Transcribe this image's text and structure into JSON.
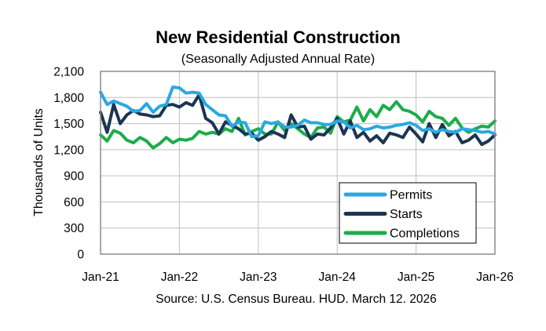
{
  "chart_data": {
    "type": "line",
    "title": "New Residential Construction",
    "subtitle": "(Seasonally Adjusted Annual Rate)",
    "ylabel": "Thousands of Units",
    "xlabel": "",
    "source": "Source:  U.S. Census Bureau. HUD. March 12. 2026",
    "ylim": [
      0,
      2100
    ],
    "yticks": [
      0,
      300,
      600,
      900,
      1200,
      1500,
      1800,
      2100
    ],
    "ytick_labels": [
      "0",
      "300",
      "600",
      "900",
      "1,200",
      "1,500",
      "1,800",
      "2,100"
    ],
    "xlim": [
      0,
      60
    ],
    "xticks": [
      0,
      12,
      24,
      36,
      48,
      60
    ],
    "xtick_labels": [
      "Jan-21",
      "Jan-22",
      "Jan-23",
      "Jan-24",
      "Jan-25",
      "Jan-26"
    ],
    "grid": true,
    "legend_position": "bottom-right",
    "series": [
      {
        "name": "Permits",
        "color": "#29a9e1",
        "x": [
          0,
          1,
          2,
          3,
          4,
          5,
          6,
          7,
          8,
          9,
          10,
          11,
          12,
          13,
          14,
          15,
          16,
          17,
          18,
          19,
          20,
          21,
          22,
          23,
          24,
          25,
          26,
          27,
          28,
          29,
          30,
          31,
          32,
          33,
          34,
          35,
          36,
          37,
          38,
          39,
          40,
          41,
          42,
          43,
          44,
          45,
          46,
          47,
          48,
          49,
          50,
          51,
          52,
          53,
          54,
          55,
          56,
          57,
          58,
          59,
          60
        ],
        "values": [
          1860,
          1720,
          1760,
          1730,
          1700,
          1640,
          1650,
          1730,
          1630,
          1700,
          1720,
          1920,
          1910,
          1850,
          1860,
          1850,
          1720,
          1660,
          1600,
          1590,
          1470,
          1520,
          1510,
          1350,
          1360,
          1520,
          1500,
          1520,
          1460,
          1460,
          1480,
          1540,
          1510,
          1510,
          1490,
          1490,
          1530,
          1520,
          1450,
          1480,
          1430,
          1440,
          1470,
          1450,
          1460,
          1480,
          1490,
          1510,
          1480,
          1420,
          1440,
          1400,
          1430,
          1410,
          1400,
          1440,
          1430,
          1420,
          1400,
          1410,
          1380
        ]
      },
      {
        "name": "Starts",
        "color": "#1b3552",
        "x": [
          0,
          1,
          2,
          3,
          4,
          5,
          6,
          7,
          8,
          9,
          10,
          11,
          12,
          13,
          14,
          15,
          16,
          17,
          18,
          19,
          20,
          21,
          22,
          23,
          24,
          25,
          26,
          27,
          28,
          29,
          30,
          31,
          32,
          33,
          34,
          35,
          36,
          37,
          38,
          39,
          40,
          41,
          42,
          43,
          44,
          45,
          46,
          47,
          48,
          49,
          50,
          51,
          52,
          53,
          54,
          55,
          56,
          57,
          58,
          59,
          60
        ],
        "values": [
          1630,
          1400,
          1720,
          1500,
          1600,
          1650,
          1610,
          1600,
          1580,
          1590,
          1710,
          1720,
          1690,
          1740,
          1710,
          1830,
          1560,
          1510,
          1380,
          1520,
          1480,
          1440,
          1380,
          1390,
          1310,
          1350,
          1410,
          1380,
          1340,
          1600,
          1460,
          1470,
          1320,
          1380,
          1370,
          1450,
          1560,
          1380,
          1530,
          1340,
          1400,
          1300,
          1360,
          1280,
          1390,
          1370,
          1340,
          1460,
          1380,
          1290,
          1500,
          1340,
          1490,
          1360,
          1410,
          1280,
          1310,
          1370,
          1260,
          1300,
          1370
        ]
      },
      {
        "name": "Completions",
        "color": "#1cac4b",
        "x": [
          0,
          1,
          2,
          3,
          4,
          5,
          6,
          7,
          8,
          9,
          10,
          11,
          12,
          13,
          14,
          15,
          16,
          17,
          18,
          19,
          20,
          21,
          22,
          23,
          24,
          25,
          26,
          27,
          28,
          29,
          30,
          31,
          32,
          33,
          34,
          35,
          36,
          37,
          38,
          39,
          40,
          41,
          42,
          43,
          44,
          45,
          46,
          47,
          48,
          49,
          50,
          51,
          52,
          53,
          54,
          55,
          56,
          57,
          58,
          59,
          60
        ],
        "values": [
          1370,
          1300,
          1420,
          1390,
          1310,
          1280,
          1340,
          1300,
          1220,
          1270,
          1340,
          1280,
          1320,
          1310,
          1330,
          1410,
          1380,
          1400,
          1380,
          1440,
          1410,
          1560,
          1370,
          1410,
          1440,
          1380,
          1380,
          1520,
          1420,
          1500,
          1440,
          1380,
          1340,
          1450,
          1460,
          1390,
          1580,
          1520,
          1540,
          1690,
          1530,
          1660,
          1580,
          1710,
          1660,
          1750,
          1660,
          1640,
          1600,
          1520,
          1640,
          1580,
          1560,
          1480,
          1560,
          1450,
          1400,
          1440,
          1470,
          1460,
          1530
        ]
      }
    ]
  }
}
